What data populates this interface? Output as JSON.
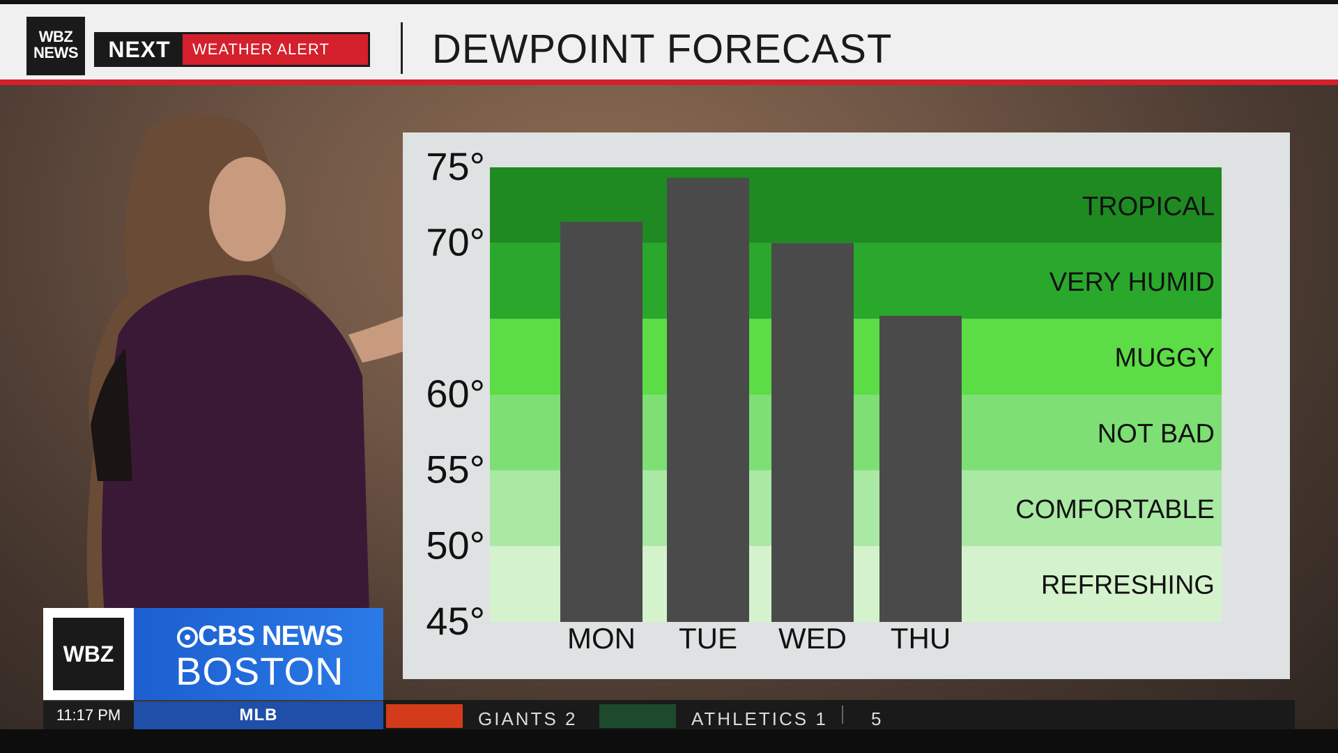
{
  "header": {
    "station_logo_line1": "WBZ",
    "station_logo_line2": "NEWS",
    "next_label": "NEXT",
    "alert_label": "WEATHER ALERT",
    "title": "DEWPOINT FORECAST"
  },
  "chart_data": {
    "type": "bar",
    "categories": [
      "MON",
      "TUE",
      "WED",
      "THU"
    ],
    "values": [
      71.4,
      74.3,
      70.0,
      65.2
    ],
    "ylim": [
      45,
      75
    ],
    "y_tick_labels": [
      "75°",
      "70°",
      "60°",
      "55°",
      "50°",
      "45°"
    ],
    "y_tick_values": [
      75,
      70,
      60,
      55,
      50,
      45
    ],
    "bands": [
      {
        "label": "TROPICAL",
        "from": 70,
        "to": 75,
        "color": "#1f8a22"
      },
      {
        "label": "VERY HUMID",
        "from": 65,
        "to": 70,
        "color": "#2aa82c"
      },
      {
        "label": "MUGGY",
        "from": 60,
        "to": 65,
        "color": "#5cdc45"
      },
      {
        "label": "NOT BAD",
        "from": 55,
        "to": 60,
        "color": "#7ddf74"
      },
      {
        "label": "COMFORTABLE",
        "from": 50,
        "to": 55,
        "color": "#aae9a4"
      },
      {
        "label": "REFRESHING",
        "from": 45,
        "to": 50,
        "color": "#d4f3cc"
      }
    ],
    "bar_color": "#4a4a4a",
    "grid": false
  },
  "lower_third": {
    "station": "WBZ",
    "network": "CBS NEWS",
    "city": "BOSTON",
    "time": "11:17 PM",
    "category": "MLB",
    "ticker_items": [
      "GIANTS  2",
      "ATHLETICS  1",
      "5"
    ]
  }
}
